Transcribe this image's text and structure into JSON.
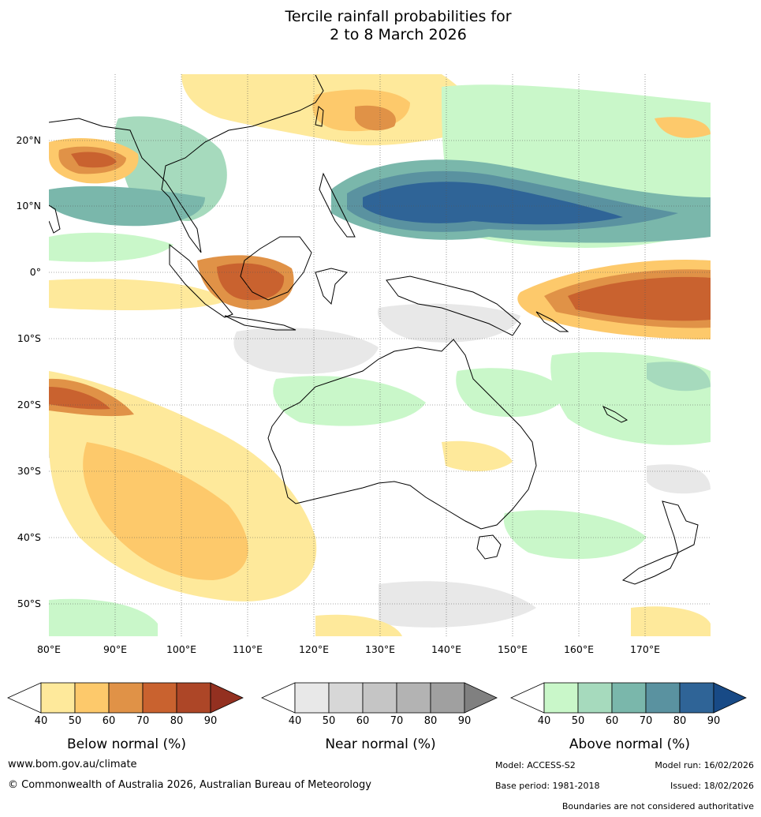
{
  "title": {
    "line1": "Tercile rainfall probabilities for",
    "line2": "2 to 8 March 2026"
  },
  "map": {
    "lat_labels": [
      "20°N",
      "10°N",
      "0°",
      "10°S",
      "20°S",
      "30°S",
      "40°S",
      "50°S"
    ],
    "lon_labels": [
      "80°E",
      "90°E",
      "100°E",
      "110°E",
      "120°E",
      "130°E",
      "140°E",
      "150°E",
      "160°E",
      "170°E"
    ],
    "lon_range": [
      80,
      180
    ],
    "lat_range": [
      -55,
      30
    ]
  },
  "legends": [
    {
      "title": "Below normal (%)",
      "ticks": [
        "40",
        "50",
        "60",
        "70",
        "80",
        "90"
      ],
      "colors": [
        "#ffffff",
        "#fee99b",
        "#fdc96b",
        "#e09247",
        "#c9622f",
        "#ad4627",
        "#933020"
      ]
    },
    {
      "title": "Near normal (%)",
      "ticks": [
        "40",
        "50",
        "60",
        "70",
        "80",
        "90"
      ],
      "colors": [
        "#ffffff",
        "#e8e8e8",
        "#d7d7d7",
        "#c5c5c5",
        "#b3b3b3",
        "#a0a0a0",
        "#808080"
      ]
    },
    {
      "title": "Above normal (%)",
      "ticks": [
        "40",
        "50",
        "60",
        "70",
        "80",
        "90"
      ],
      "colors": [
        "#ffffff",
        "#c9f7c9",
        "#a6dabd",
        "#7ab7ab",
        "#5a92a0",
        "#2f6497",
        "#184a86"
      ]
    }
  ],
  "footer": {
    "website": "www.bom.gov.au/climate",
    "copyright": "© Commonwealth of Australia 2026, Australian Bureau of Meteorology",
    "model": "Model: ACCESS-S2",
    "model_run": "Model run: 16/02/2026",
    "base_period": "Base period: 1981-2018",
    "issued": "Issued: 18/02/2026",
    "disclaimer": "Boundaries are not considered authoritative"
  }
}
